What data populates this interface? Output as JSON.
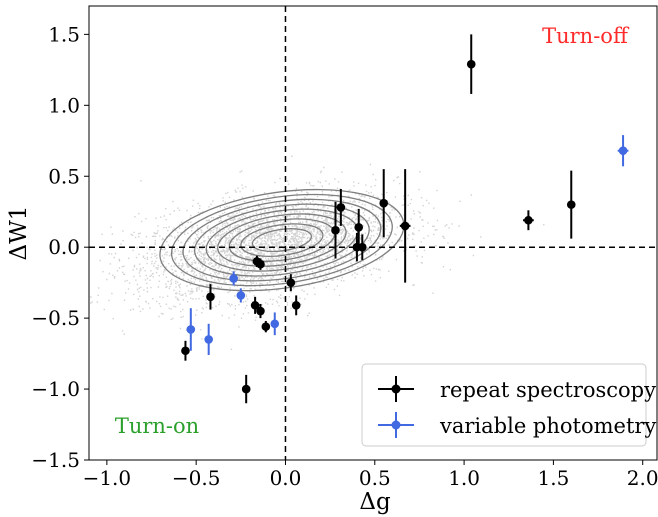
{
  "chart_data": {
    "type": "scatter",
    "title": "",
    "xlabel": "Δg",
    "ylabel": "ΔW1",
    "xlim": [
      -1.1,
      2.08
    ],
    "ylim": [
      -1.5,
      1.7
    ],
    "xticks": [
      -1.0,
      -0.5,
      0.0,
      0.5,
      1.0,
      1.5,
      2.0
    ],
    "xtick_labels": [
      "−1.0",
      "−0.5",
      "0.0",
      "0.5",
      "1.0",
      "1.5",
      "2.0"
    ],
    "yticks": [
      -1.5,
      -1.0,
      -0.5,
      0.0,
      0.5,
      1.0,
      1.5
    ],
    "ytick_labels": [
      "−1.5",
      "−1.0",
      "−0.5",
      "0.0",
      "0.5",
      "1.0",
      "1.5"
    ],
    "grid": false,
    "reference_lines": {
      "x": 0,
      "y": 0,
      "style": "dashed"
    },
    "background_population": "dense grey scatter with grey density contours centred near (0, 0.05)",
    "annotations": [
      {
        "text": "Turn-off",
        "color": "#ff2a2a",
        "position": "top-right"
      },
      {
        "text": "Turn-on",
        "color": "#2ca02c",
        "position": "bottom-left"
      }
    ],
    "legend": {
      "position": "lower-right"
    },
    "series": [
      {
        "name": "repeat spectroscopy",
        "color": "#000000",
        "points": [
          {
            "x": -0.56,
            "y": -0.73,
            "yerr": 0.07
          },
          {
            "x": -0.42,
            "y": -0.35,
            "yerr": 0.09
          },
          {
            "x": -0.22,
            "y": -1.0,
            "yerr": 0.1
          },
          {
            "x": -0.17,
            "y": -0.41,
            "yerr": 0.06
          },
          {
            "x": -0.16,
            "y": -0.1,
            "yerr": 0.04
          },
          {
            "x": -0.14,
            "y": -0.45,
            "yerr": 0.05
          },
          {
            "x": -0.14,
            "y": -0.12,
            "yerr": 0.04
          },
          {
            "x": -0.11,
            "y": -0.56,
            "yerr": 0.04
          },
          {
            "x": 0.03,
            "y": -0.25,
            "yerr": 0.06
          },
          {
            "x": 0.06,
            "y": -0.41,
            "yerr": 0.07
          },
          {
            "x": 0.28,
            "y": 0.12,
            "yerr": 0.2
          },
          {
            "x": 0.31,
            "y": 0.28,
            "yerr": 0.13
          },
          {
            "x": 0.4,
            "y": 0.0,
            "yerr": 0.1
          },
          {
            "x": 0.41,
            "y": 0.14,
            "yerr": 0.13
          },
          {
            "x": 0.43,
            "y": 0.0,
            "yerr": 0.09
          },
          {
            "x": 0.55,
            "y": 0.31,
            "yerr": 0.24
          },
          {
            "x": 0.67,
            "y": 0.15,
            "yerr": 0.4,
            "xerr": 0.03
          },
          {
            "x": 1.04,
            "y": 1.29,
            "yerr": 0.21
          },
          {
            "x": 1.36,
            "y": 0.19,
            "yerr": 0.07,
            "xerr": 0.03
          },
          {
            "x": 1.6,
            "y": 0.3,
            "yerr": 0.24
          }
        ]
      },
      {
        "name": "variable photometry",
        "color": "#4169e1",
        "points": [
          {
            "x": -0.53,
            "y": -0.58,
            "yerr": 0.15,
            "xerr": 0.02
          },
          {
            "x": -0.43,
            "y": -0.65,
            "yerr": 0.11
          },
          {
            "x": -0.29,
            "y": -0.22,
            "yerr": 0.05,
            "xerr": 0.02
          },
          {
            "x": -0.25,
            "y": -0.34,
            "yerr": 0.05
          },
          {
            "x": -0.06,
            "y": -0.54,
            "yerr": 0.08,
            "xerr": 0.02
          },
          {
            "x": 1.89,
            "y": 0.68,
            "yerr": 0.11,
            "xerr": 0.03
          }
        ]
      }
    ]
  }
}
